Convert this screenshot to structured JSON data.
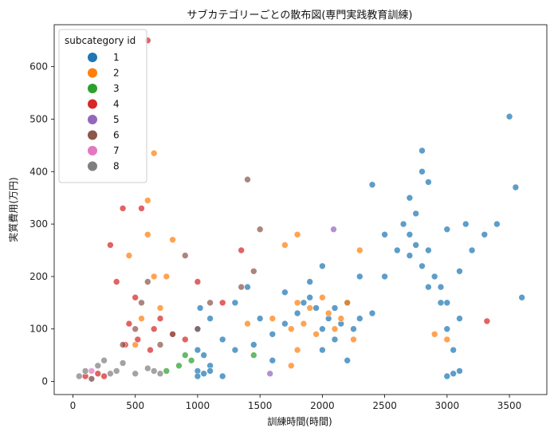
{
  "chart_data": {
    "type": "scatter",
    "title": "サブカテゴリーごとの散布図(専門実践教育訓練)",
    "xlabel": "訓練時間(時間)",
    "ylabel": "実質費用(万円)",
    "xlim": [
      -150,
      3800
    ],
    "ylim": [
      -25,
      680
    ],
    "x_ticks": [
      0,
      500,
      1000,
      1500,
      2000,
      2500,
      3000,
      3500
    ],
    "y_ticks": [
      0,
      100,
      200,
      300,
      400,
      500,
      600
    ],
    "grid": false,
    "legend": {
      "title": "subcategory id",
      "position": "top-left",
      "entries": [
        "1",
        "2",
        "3",
        "4",
        "5",
        "6",
        "7",
        "8"
      ]
    },
    "series": [
      {
        "name": "1",
        "color": "#1f77b4",
        "x": [
          1000,
          1000,
          1000,
          1020,
          1050,
          1100,
          1100,
          1200,
          1300,
          1400,
          1500,
          1600,
          1700,
          1800,
          1850,
          1900,
          1950,
          2000,
          2000,
          2050,
          2100,
          2150,
          2200,
          2250,
          2300,
          2400,
          2500,
          2600,
          2650,
          2700,
          2700,
          2750,
          2800,
          2800,
          2850,
          2900,
          2950,
          3000,
          3000,
          3050,
          3100,
          3150,
          3200,
          3300,
          3400,
          3500,
          3550,
          3600,
          1700,
          1900,
          2000,
          2100,
          2200,
          2300,
          1000,
          1050,
          1100,
          1200,
          2700,
          2750,
          2800,
          2850,
          2950,
          3000,
          3050,
          3100,
          3000,
          3100,
          2850,
          1300,
          1450,
          1600,
          2400,
          2500
        ],
        "y": [
          20,
          60,
          100,
          140,
          50,
          120,
          30,
          80,
          150,
          180,
          120,
          90,
          110,
          130,
          150,
          160,
          140,
          100,
          60,
          120,
          140,
          110,
          150,
          100,
          120,
          130,
          200,
          250,
          300,
          350,
          280,
          320,
          400,
          440,
          250,
          200,
          180,
          150,
          100,
          60,
          210,
          300,
          250,
          280,
          300,
          505,
          370,
          160,
          170,
          190,
          220,
          80,
          40,
          200,
          10,
          15,
          20,
          10,
          240,
          260,
          220,
          180,
          150,
          10,
          15,
          20,
          290,
          120,
          380,
          60,
          70,
          40,
          375,
          280
        ]
      },
      {
        "name": "2",
        "color": "#ff7f0e",
        "x": [
          450,
          500,
          550,
          600,
          650,
          700,
          750,
          800,
          1400,
          1600,
          1700,
          1750,
          1800,
          1800,
          1850,
          1900,
          1950,
          2000,
          2050,
          2100,
          2150,
          2200,
          2250,
          2300,
          650,
          600,
          1800,
          2900,
          3000,
          1750
        ],
        "y": [
          240,
          70,
          120,
          280,
          435,
          140,
          200,
          270,
          110,
          120,
          260,
          100,
          150,
          60,
          110,
          140,
          90,
          160,
          130,
          100,
          120,
          150,
          80,
          250,
          200,
          345,
          280,
          90,
          80,
          30
        ]
      },
      {
        "name": "3",
        "color": "#2ca02c",
        "x": [
          850,
          900,
          950,
          1450,
          750
        ],
        "y": [
          30,
          50,
          40,
          50,
          20
        ]
      },
      {
        "name": "4",
        "color": "#d62728",
        "x": [
          100,
          150,
          200,
          250,
          300,
          350,
          400,
          450,
          500,
          550,
          600,
          650,
          700,
          800,
          900,
          1000,
          1200,
          1350,
          3320,
          420,
          520,
          620
        ],
        "y": [
          10,
          5,
          15,
          10,
          260,
          190,
          330,
          110,
          160,
          330,
          650,
          100,
          120,
          90,
          80,
          190,
          150,
          250,
          115,
          70,
          80,
          60
        ]
      },
      {
        "name": "5",
        "color": "#9467bd",
        "x": [
          1580,
          2090
        ],
        "y": [
          15,
          290
        ]
      },
      {
        "name": "6",
        "color": "#8c564b",
        "x": [
          400,
          500,
          550,
          600,
          700,
          800,
          900,
          1000,
          1100,
          1400,
          1450,
          1350,
          1500
        ],
        "y": [
          70,
          100,
          150,
          190,
          70,
          90,
          240,
          100,
          150,
          385,
          210,
          180,
          290
        ]
      },
      {
        "name": "7",
        "color": "#e377c2",
        "x": [
          150
        ],
        "y": [
          20
        ]
      },
      {
        "name": "8",
        "color": "#7f7f7f",
        "x": [
          50,
          100,
          150,
          200,
          250,
          300,
          350,
          400,
          500,
          600,
          650,
          700
        ],
        "y": [
          10,
          20,
          5,
          30,
          40,
          15,
          20,
          35,
          15,
          25,
          20,
          15
        ]
      }
    ]
  }
}
